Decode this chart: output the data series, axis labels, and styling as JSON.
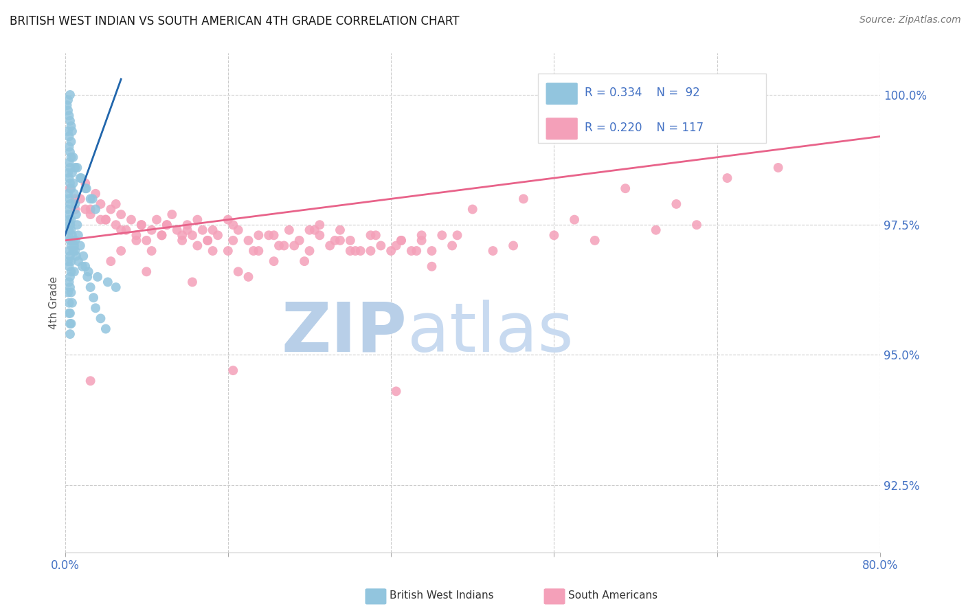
{
  "title": "BRITISH WEST INDIAN VS SOUTH AMERICAN 4TH GRADE CORRELATION CHART",
  "source": "Source: ZipAtlas.com",
  "ylabel": "4th Grade",
  "xmin": 0.0,
  "xmax": 80.0,
  "ymin": 91.2,
  "ymax": 100.8,
  "yticks": [
    92.5,
    95.0,
    97.5,
    100.0
  ],
  "xticks": [
    0.0,
    16.0,
    32.0,
    48.0,
    64.0,
    80.0
  ],
  "legend_r1": "R = 0.334",
  "legend_n1": "N =  92",
  "legend_r2": "R = 0.220",
  "legend_n2": "N = 117",
  "blue_color": "#92c5de",
  "pink_color": "#f4a0b9",
  "blue_line_color": "#2166ac",
  "pink_line_color": "#e8638a",
  "title_color": "#1a1a1a",
  "axis_label_color": "#4472c4",
  "watermark_zip_color": "#c5d8ee",
  "watermark_atlas_color": "#b0c8e8",
  "background_color": "#ffffff",
  "blue_scatter_x": [
    0.3,
    0.5,
    0.4,
    0.6,
    0.2,
    0.7,
    0.4,
    0.3,
    0.5,
    0.6,
    0.4,
    0.5,
    0.3,
    0.6,
    0.4,
    0.5,
    0.3,
    0.4,
    0.5,
    0.6,
    0.3,
    0.4,
    0.5,
    0.3,
    0.4,
    0.6,
    0.5,
    0.4,
    0.3,
    0.5,
    0.6,
    0.4,
    0.5,
    0.3,
    0.4,
    0.6,
    0.5,
    0.4,
    0.5,
    0.6,
    0.7,
    0.8,
    0.9,
    1.0,
    1.1,
    1.2,
    1.3,
    1.5,
    1.8,
    2.0,
    2.2,
    2.5,
    2.8,
    3.0,
    3.5,
    4.0,
    1.0,
    1.5,
    2.0,
    2.5,
    3.0,
    0.8,
    1.2,
    1.6,
    2.1,
    2.7,
    0.4,
    0.5,
    0.6,
    0.7,
    0.8,
    0.9,
    1.0,
    1.1,
    1.3,
    1.7,
    2.3,
    3.2,
    4.2,
    5.0,
    0.4,
    0.5,
    0.6,
    0.3,
    0.7,
    0.4,
    0.5,
    1.0,
    0.8,
    0.6,
    0.9,
    0.5
  ],
  "blue_scatter_y": [
    99.7,
    99.5,
    99.6,
    99.4,
    99.8,
    99.3,
    99.2,
    99.9,
    100.0,
    99.1,
    99.0,
    98.9,
    99.3,
    98.8,
    98.7,
    98.6,
    98.5,
    98.4,
    98.3,
    98.2,
    98.1,
    98.0,
    97.9,
    97.8,
    97.7,
    97.6,
    97.5,
    97.4,
    97.3,
    97.2,
    97.1,
    97.0,
    96.9,
    96.8,
    96.7,
    96.6,
    96.5,
    96.4,
    96.3,
    96.2,
    98.5,
    98.3,
    98.1,
    97.9,
    97.7,
    97.5,
    97.3,
    97.1,
    96.9,
    96.7,
    96.5,
    96.3,
    96.1,
    95.9,
    95.7,
    95.5,
    98.6,
    98.4,
    98.2,
    98.0,
    97.8,
    98.8,
    98.6,
    98.4,
    98.2,
    98.0,
    97.6,
    97.5,
    97.4,
    97.3,
    97.2,
    97.1,
    97.0,
    96.9,
    96.8,
    96.7,
    96.6,
    96.5,
    96.4,
    96.3,
    96.0,
    95.8,
    95.6,
    96.2,
    96.0,
    95.8,
    95.6,
    97.2,
    97.0,
    96.8,
    96.6,
    95.4
  ],
  "pink_scatter_x": [
    0.5,
    1.0,
    1.5,
    2.0,
    2.5,
    3.0,
    3.5,
    4.0,
    4.5,
    5.0,
    5.5,
    6.0,
    6.5,
    7.0,
    7.5,
    8.0,
    8.5,
    9.0,
    9.5,
    10.0,
    10.5,
    11.0,
    11.5,
    12.0,
    12.5,
    13.0,
    13.5,
    14.0,
    14.5,
    15.0,
    16.0,
    17.0,
    18.0,
    19.0,
    20.0,
    21.0,
    22.0,
    23.0,
    24.0,
    25.0,
    26.0,
    27.0,
    28.0,
    29.0,
    30.0,
    31.0,
    32.0,
    33.0,
    34.0,
    35.0,
    36.0,
    37.0,
    38.0,
    2.5,
    4.0,
    5.5,
    7.0,
    8.5,
    10.0,
    11.5,
    13.0,
    14.5,
    16.5,
    18.5,
    20.5,
    22.5,
    24.5,
    26.5,
    28.5,
    30.5,
    32.5,
    34.5,
    1.0,
    2.0,
    3.5,
    5.0,
    7.5,
    9.5,
    12.0,
    14.0,
    16.5,
    19.0,
    21.5,
    24.0,
    27.0,
    30.0,
    35.0,
    40.0,
    45.0,
    50.0,
    55.0,
    60.0,
    65.0,
    70.0,
    62.0,
    48.0,
    42.0,
    52.0,
    58.0,
    44.0,
    38.5,
    25.0,
    33.0,
    16.0,
    20.5,
    28.0,
    23.5,
    17.0,
    12.5,
    8.0,
    4.5,
    5.5,
    18.0,
    36.0,
    2.5,
    16.5,
    32.5
  ],
  "pink_scatter_y": [
    98.2,
    97.8,
    98.0,
    98.3,
    97.7,
    98.1,
    97.9,
    97.6,
    97.8,
    97.5,
    97.7,
    97.4,
    97.6,
    97.3,
    97.5,
    97.2,
    97.4,
    97.6,
    97.3,
    97.5,
    97.7,
    97.4,
    97.2,
    97.5,
    97.3,
    97.6,
    97.4,
    97.2,
    97.0,
    97.3,
    97.6,
    97.4,
    97.2,
    97.0,
    97.3,
    97.1,
    97.4,
    97.2,
    97.0,
    97.3,
    97.1,
    97.4,
    97.2,
    97.0,
    97.3,
    97.1,
    97.0,
    97.2,
    97.0,
    97.2,
    97.0,
    97.3,
    97.1,
    97.8,
    97.6,
    97.4,
    97.2,
    97.0,
    97.5,
    97.3,
    97.1,
    97.4,
    97.2,
    97.0,
    97.3,
    97.1,
    97.4,
    97.2,
    97.0,
    97.3,
    97.1,
    97.0,
    98.0,
    97.8,
    97.6,
    97.9,
    97.5,
    97.3,
    97.4,
    97.2,
    97.5,
    97.3,
    97.1,
    97.4,
    97.2,
    97.0,
    97.3,
    97.8,
    98.0,
    97.6,
    98.2,
    97.9,
    98.4,
    98.6,
    97.5,
    97.3,
    97.0,
    97.2,
    97.4,
    97.1,
    97.3,
    97.5,
    97.2,
    97.0,
    96.8,
    97.0,
    96.8,
    96.6,
    96.4,
    96.6,
    96.8,
    97.0,
    96.5,
    96.7,
    94.5,
    94.7,
    94.3
  ],
  "blue_trend_x": [
    0.0,
    5.5
  ],
  "blue_trend_y": [
    97.3,
    100.3
  ],
  "pink_trend_x": [
    0.0,
    80.0
  ],
  "pink_trend_y": [
    97.2,
    99.2
  ]
}
